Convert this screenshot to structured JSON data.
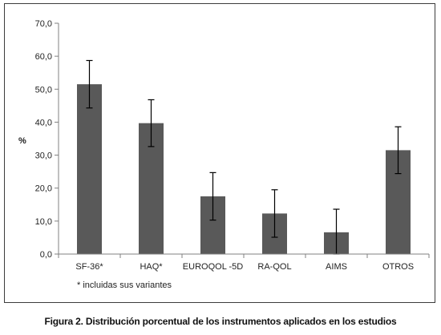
{
  "chart_data": {
    "type": "bar",
    "categories": [
      "SF-36*",
      "HAQ*",
      "EUROQOL -5D",
      "RA-QOL",
      "AIMS",
      "OTROS"
    ],
    "values": [
      51.5,
      39.7,
      17.5,
      12.3,
      6.6,
      31.5
    ],
    "error_low": [
      44.3,
      32.6,
      10.3,
      5.1,
      0.0,
      24.4
    ],
    "error_high": [
      58.7,
      46.8,
      24.7,
      19.5,
      13.6,
      38.6
    ],
    "ylabel": "%",
    "ylim": [
      0,
      70
    ],
    "yticks": [
      "0,0",
      "10,0",
      "20,0",
      "30,0",
      "40,0",
      "50,0",
      "60,0",
      "70,0"
    ],
    "grid": false,
    "footnote": "* incluidas sus variantes",
    "bar_color": "#595959",
    "axis_color": "#808080"
  },
  "caption": "Figura 2. Distribución porcentual de los instrumentos aplicados en los estudios"
}
